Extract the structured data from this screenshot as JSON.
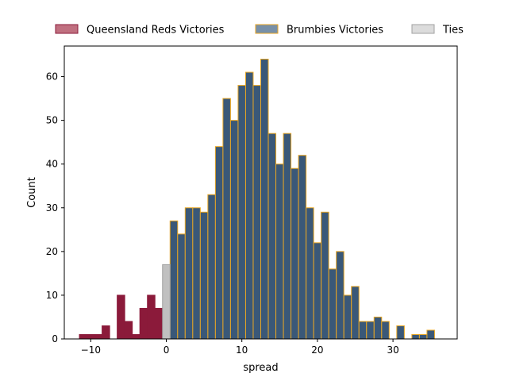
{
  "chart_data": {
    "type": "bar",
    "xlabel": "spread",
    "ylabel": "Count",
    "xlim": [
      -13.5,
      38.5
    ],
    "ylim": [
      0,
      67
    ],
    "xticks": [
      -10,
      0,
      10,
      20,
      30
    ],
    "yticks": [
      0,
      10,
      20,
      30,
      40,
      50,
      60
    ],
    "bin_width": 1,
    "legend_position": "top",
    "series": [
      {
        "name": "Queensland Reds Victories",
        "color": "#8b1a3a",
        "edge": "#8b1a3a",
        "legend_color": "#c07080",
        "x": [
          -11,
          -10,
          -9,
          -8,
          -7,
          -6,
          -5,
          -4,
          -3,
          -2,
          -1
        ],
        "values": [
          1,
          1,
          1,
          3,
          0,
          10,
          4,
          1,
          7,
          10,
          7
        ]
      },
      {
        "name": "Brumbies Victories",
        "color": "#3a5878",
        "edge": "#e8a623",
        "legend_color": "#7890a8",
        "x": [
          1,
          2,
          3,
          4,
          5,
          6,
          7,
          8,
          9,
          10,
          11,
          12,
          13,
          14,
          15,
          16,
          17,
          18,
          19,
          20,
          21,
          22,
          23,
          24,
          25,
          26,
          27,
          28,
          29,
          30,
          31,
          32,
          33,
          34,
          35
        ],
        "values": [
          27,
          24,
          30,
          30,
          29,
          33,
          44,
          55,
          50,
          58,
          61,
          58,
          64,
          47,
          40,
          47,
          39,
          42,
          30,
          22,
          29,
          16,
          20,
          10,
          12,
          4,
          4,
          5,
          4,
          0,
          3,
          0,
          1,
          1,
          2
        ]
      },
      {
        "name": "Ties",
        "color": "#c0c0c0",
        "edge": "#a0a0a0",
        "legend_color": "#dcdcdc",
        "x": [
          0
        ],
        "values": [
          17
        ]
      }
    ]
  }
}
